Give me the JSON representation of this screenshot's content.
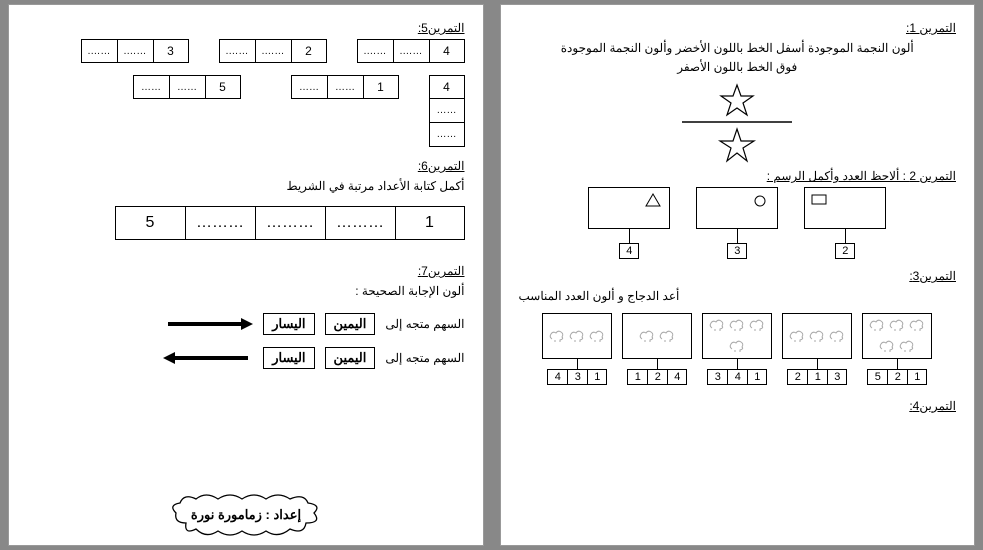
{
  "page1": {
    "ex1": {
      "title": "التمرين 1:",
      "instr_line1": "ألون النجمة الموجودة أسفل الخط باللون الأخضر وألون النجمة الموجودة",
      "instr_line2": "فوق الخط باللون الأصفر"
    },
    "ex2": {
      "title": "التمرين 2 : ألاحظ العدد وأكمل الرسم :",
      "boxes": [
        {
          "num": "2",
          "shape": "rect"
        },
        {
          "num": "3",
          "shape": "circle"
        },
        {
          "num": "4",
          "shape": "triangle"
        }
      ]
    },
    "ex3": {
      "title": "التمرين3:",
      "instr": "أعد الدجاج و ألون العدد المناسب",
      "groups": [
        {
          "count": 5,
          "nums": [
            "1",
            "2",
            "5"
          ]
        },
        {
          "count": 3,
          "nums": [
            "3",
            "1",
            "2"
          ]
        },
        {
          "count": 4,
          "nums": [
            "1",
            "4",
            "3"
          ]
        },
        {
          "count": 2,
          "nums": [
            "4",
            "2",
            "1"
          ]
        },
        {
          "count": 3,
          "nums": [
            "1",
            "3",
            "4"
          ]
        }
      ]
    },
    "ex4": {
      "title": "التمرين4:"
    }
  },
  "page2": {
    "ex5": {
      "title": "التمرين5:",
      "row1": [
        {
          "cells": [
            "4",
            "…….",
            "……."
          ]
        },
        {
          "cells": [
            "2",
            "…….",
            "……."
          ]
        },
        {
          "cells": [
            "3",
            "…….",
            "……."
          ]
        }
      ],
      "row2_v": {
        "cells": [
          "4",
          "……",
          "……"
        ]
      },
      "row2_a": {
        "cells": [
          "1",
          "……",
          "……"
        ]
      },
      "row2_b": {
        "cells": [
          "5",
          "……",
          "……"
        ]
      }
    },
    "ex6": {
      "title": "التمرين6:",
      "instr": "أكمل كتابة الأعداد مرتبة في الشريط",
      "cells": [
        "1",
        "………",
        "………",
        "………",
        "5"
      ]
    },
    "ex7": {
      "title": "التمرين7:",
      "instr": "ألون الإجابة الصحيحة :",
      "line_text": "السهم متجه إلى",
      "opt_right": "اليمين",
      "opt_left": "اليسار"
    },
    "credit": "إعداد : زمامورة نورة"
  },
  "dots": "……."
}
